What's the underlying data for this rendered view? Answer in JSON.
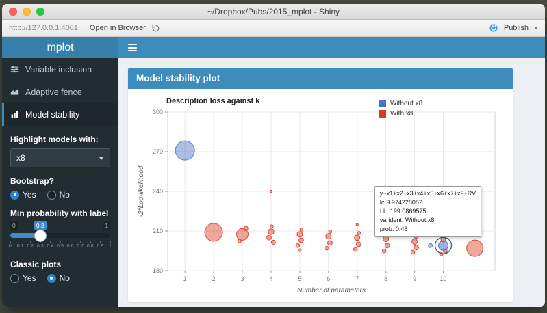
{
  "window": {
    "title": "~/Dropbox/Pubs/2015_mplot - Shiny",
    "url": "http://127.0.0.1:4061",
    "open_in_browser_label": "Open in Browser",
    "publish_label": "Publish"
  },
  "header": {
    "brand": "mplot"
  },
  "sidebar": {
    "items": [
      {
        "label": "Variable inclusion",
        "icon": "sliders-icon",
        "active": false
      },
      {
        "label": "Adaptive fence",
        "icon": "area-chart-icon",
        "active": false
      },
      {
        "label": "Model stability",
        "icon": "bar-chart-icon",
        "active": true
      }
    ],
    "highlight": {
      "label": "Highlight models with:",
      "value": "x8"
    },
    "bootstrap": {
      "label": "Bootstrap?",
      "options": [
        "Yes",
        "No"
      ],
      "selected": "Yes"
    },
    "min_prob": {
      "label": "Min probability with label",
      "min": 0,
      "max": 1,
      "value": 0.3,
      "min_label": "0",
      "max_label": "1",
      "value_label": "0.3",
      "ticks": [
        "0",
        "0.1",
        "0.2",
        "0.3",
        "0.4",
        "0.5",
        "0.6",
        "0.7",
        "0.8",
        "0.9",
        "1"
      ]
    },
    "classic": {
      "label": "Classic plots",
      "options": [
        "Yes",
        "No"
      ],
      "selected": "No"
    }
  },
  "panel": {
    "title": "Model stability plot"
  },
  "chart_data": {
    "type": "scatter",
    "title": "Description loss against k",
    "xlabel": "Number of parameters",
    "ylabel": "-2*Log-likelihood",
    "xlim": [
      0.4,
      11.8
    ],
    "ylim": [
      180,
      300
    ],
    "xticks": [
      1,
      2,
      3,
      4,
      5,
      6,
      7,
      8,
      9,
      10
    ],
    "xgrid": [
      1,
      2,
      3,
      4,
      5,
      6,
      7,
      8,
      9,
      10,
      11
    ],
    "yticks": [
      180,
      210,
      240,
      270,
      300
    ],
    "legend": [
      {
        "label": "Without x8",
        "color": "#4a72c4"
      },
      {
        "label": "With x8",
        "color": "#dc3a22"
      }
    ],
    "groups": {
      "without_x8": "#4a72c4",
      "with_x8": "#dc3a22"
    },
    "points": [
      {
        "x": 1.0,
        "y": 271.0,
        "r": 14.0,
        "group": "without_x8"
      },
      {
        "x": 2.0,
        "y": 209.0,
        "r": 13.0,
        "group": "with_x8"
      },
      {
        "x": 3.0,
        "y": 207.5,
        "r": 8.5,
        "group": "with_x8"
      },
      {
        "x": 3.12,
        "y": 212.0,
        "r": 3.2,
        "group": "with_x8"
      },
      {
        "x": 2.9,
        "y": 202.5,
        "r": 2.6,
        "group": "with_x8"
      },
      {
        "x": 4.0,
        "y": 240.0,
        "r": 1.6,
        "group": "with_x8"
      },
      {
        "x": 4.0,
        "y": 209.5,
        "r": 4.2,
        "group": "with_x8"
      },
      {
        "x": 3.93,
        "y": 205.0,
        "r": 3.4,
        "group": "with_x8"
      },
      {
        "x": 4.08,
        "y": 201.5,
        "r": 3.0,
        "group": "with_x8"
      },
      {
        "x": 4.02,
        "y": 213.5,
        "r": 2.4,
        "group": "with_x8"
      },
      {
        "x": 5.0,
        "y": 207.5,
        "r": 4.0,
        "group": "with_x8"
      },
      {
        "x": 5.05,
        "y": 203.0,
        "r": 3.4,
        "group": "with_x8"
      },
      {
        "x": 4.93,
        "y": 199.0,
        "r": 2.8,
        "group": "with_x8"
      },
      {
        "x": 5.06,
        "y": 211.0,
        "r": 2.3,
        "group": "with_x8"
      },
      {
        "x": 5.0,
        "y": 195.5,
        "r": 2.0,
        "group": "with_x8"
      },
      {
        "x": 6.0,
        "y": 206.0,
        "r": 4.0,
        "group": "with_x8"
      },
      {
        "x": 6.05,
        "y": 201.0,
        "r": 3.4,
        "group": "with_x8"
      },
      {
        "x": 5.94,
        "y": 197.0,
        "r": 2.8,
        "group": "with_x8"
      },
      {
        "x": 6.06,
        "y": 209.5,
        "r": 2.3,
        "group": "with_x8"
      },
      {
        "x": 7.0,
        "y": 215.0,
        "r": 1.6,
        "group": "with_x8"
      },
      {
        "x": 7.0,
        "y": 205.0,
        "r": 4.0,
        "group": "with_x8"
      },
      {
        "x": 7.05,
        "y": 200.0,
        "r": 3.4,
        "group": "with_x8"
      },
      {
        "x": 6.94,
        "y": 196.0,
        "r": 2.8,
        "group": "with_x8"
      },
      {
        "x": 7.06,
        "y": 208.5,
        "r": 2.3,
        "group": "with_x8"
      },
      {
        "x": 8.0,
        "y": 213.0,
        "r": 1.6,
        "group": "with_x8"
      },
      {
        "x": 8.0,
        "y": 204.0,
        "r": 4.0,
        "group": "with_x8"
      },
      {
        "x": 8.05,
        "y": 199.0,
        "r": 3.4,
        "group": "with_x8"
      },
      {
        "x": 7.94,
        "y": 195.0,
        "r": 2.8,
        "group": "with_x8"
      },
      {
        "x": 8.06,
        "y": 207.5,
        "r": 2.3,
        "group": "with_x8"
      },
      {
        "x": 9.0,
        "y": 202.0,
        "r": 4.0,
        "group": "with_x8"
      },
      {
        "x": 9.06,
        "y": 197.5,
        "r": 3.4,
        "group": "with_x8"
      },
      {
        "x": 8.94,
        "y": 194.0,
        "r": 2.8,
        "group": "with_x8"
      },
      {
        "x": 9.05,
        "y": 205.5,
        "r": 2.3,
        "group": "with_x8"
      },
      {
        "x": 9.55,
        "y": 199.0,
        "r": 3.0,
        "group": "without_x8"
      },
      {
        "x": 10.0,
        "y": 203.5,
        "r": 3.4,
        "group": "with_x8"
      },
      {
        "x": 10.07,
        "y": 195.0,
        "r": 2.8,
        "group": "with_x8"
      },
      {
        "x": 9.93,
        "y": 192.5,
        "r": 2.4,
        "group": "with_x8"
      },
      {
        "x": 11.1,
        "y": 197.0,
        "r": 12.0,
        "group": "with_x8"
      }
    ],
    "highlight": {
      "x": 10,
      "y": 199,
      "r": 7,
      "ring_r": 12,
      "group": "without_x8"
    },
    "tooltip": {
      "lines": [
        "y~x1+x2+x3+x4+x5+x6+x7+x9+RV",
        "k: 9.974228082",
        "LL: 199.0869575",
        "varident: Without x8",
        "prob: 0.48"
      ],
      "anchor": {
        "x": 7.6,
        "y": 244
      }
    }
  }
}
